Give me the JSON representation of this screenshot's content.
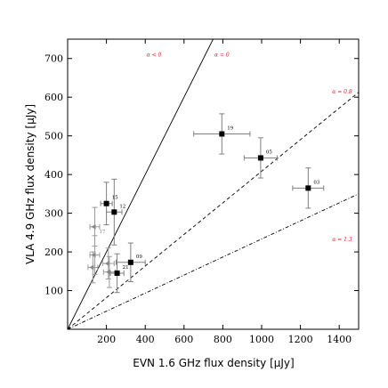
{
  "chart_data": {
    "type": "scatter",
    "xlabel": "EVN 1.6 GHz flux density [μJy]",
    "ylabel": "VLA 4.9 GHz flux density [μJy]",
    "xlim": [
      0,
      1500
    ],
    "ylim": [
      0,
      750
    ],
    "xticks": [
      200,
      400,
      600,
      800,
      1000,
      1200,
      1400
    ],
    "yticks": [
      100,
      200,
      300,
      400,
      500,
      600,
      700
    ],
    "grid": false,
    "reference_lines": [
      {
        "label": "α = 0",
        "alpha": 0,
        "style": "solid",
        "label_x": 795,
        "label_y": 705
      },
      {
        "label": "α = 0.8",
        "alpha": 0.8,
        "style": "dashed",
        "label_x": 1415,
        "label_y": 610
      },
      {
        "label": "α = 1.3",
        "alpha": 1.3,
        "style": "dashdot",
        "label_x": 1415,
        "label_y": 228
      }
    ],
    "region_labels": [
      {
        "text": "α < 0",
        "x": 445,
        "y": 705
      }
    ],
    "detections": [
      {
        "label": "15",
        "x": 200,
        "y": 325,
        "xerr": 30,
        "yerr": 55
      },
      {
        "label": "12",
        "x": 240,
        "y": 303,
        "xerr": 40,
        "yerr": 85
      },
      {
        "label": "21",
        "x": 255,
        "y": 145,
        "xerr": 35,
        "yerr": 50
      },
      {
        "label": "09",
        "x": 325,
        "y": 173,
        "xerr": 75,
        "yerr": 50
      },
      {
        "label": "19",
        "x": 795,
        "y": 505,
        "xerr": 145,
        "yerr": 52
      },
      {
        "label": "05",
        "x": 995,
        "y": 443,
        "xerr": 85,
        "yerr": 52
      },
      {
        "label": "03",
        "x": 1240,
        "y": 365,
        "xerr": 80,
        "yerr": 52
      }
    ],
    "limits": [
      {
        "label": "17",
        "x": 140,
        "y": 265,
        "xerr": 25,
        "yerr": 50
      },
      {
        "label": "",
        "x": 140,
        "y": 192,
        "xerr": 25,
        "yerr": 50
      },
      {
        "label": "",
        "x": 130,
        "y": 160,
        "xerr": 25,
        "yerr": 40
      },
      {
        "label": "",
        "x": 210,
        "y": 170,
        "xerr": 30,
        "yerr": 40
      },
      {
        "label": "",
        "x": 215,
        "y": 148,
        "xerr": 30,
        "yerr": 40
      }
    ],
    "colors": {
      "detection": "#000000",
      "limit": "#888888",
      "errorbar": "#808080",
      "reference_label": "#e8202a",
      "line": "#000000"
    }
  }
}
